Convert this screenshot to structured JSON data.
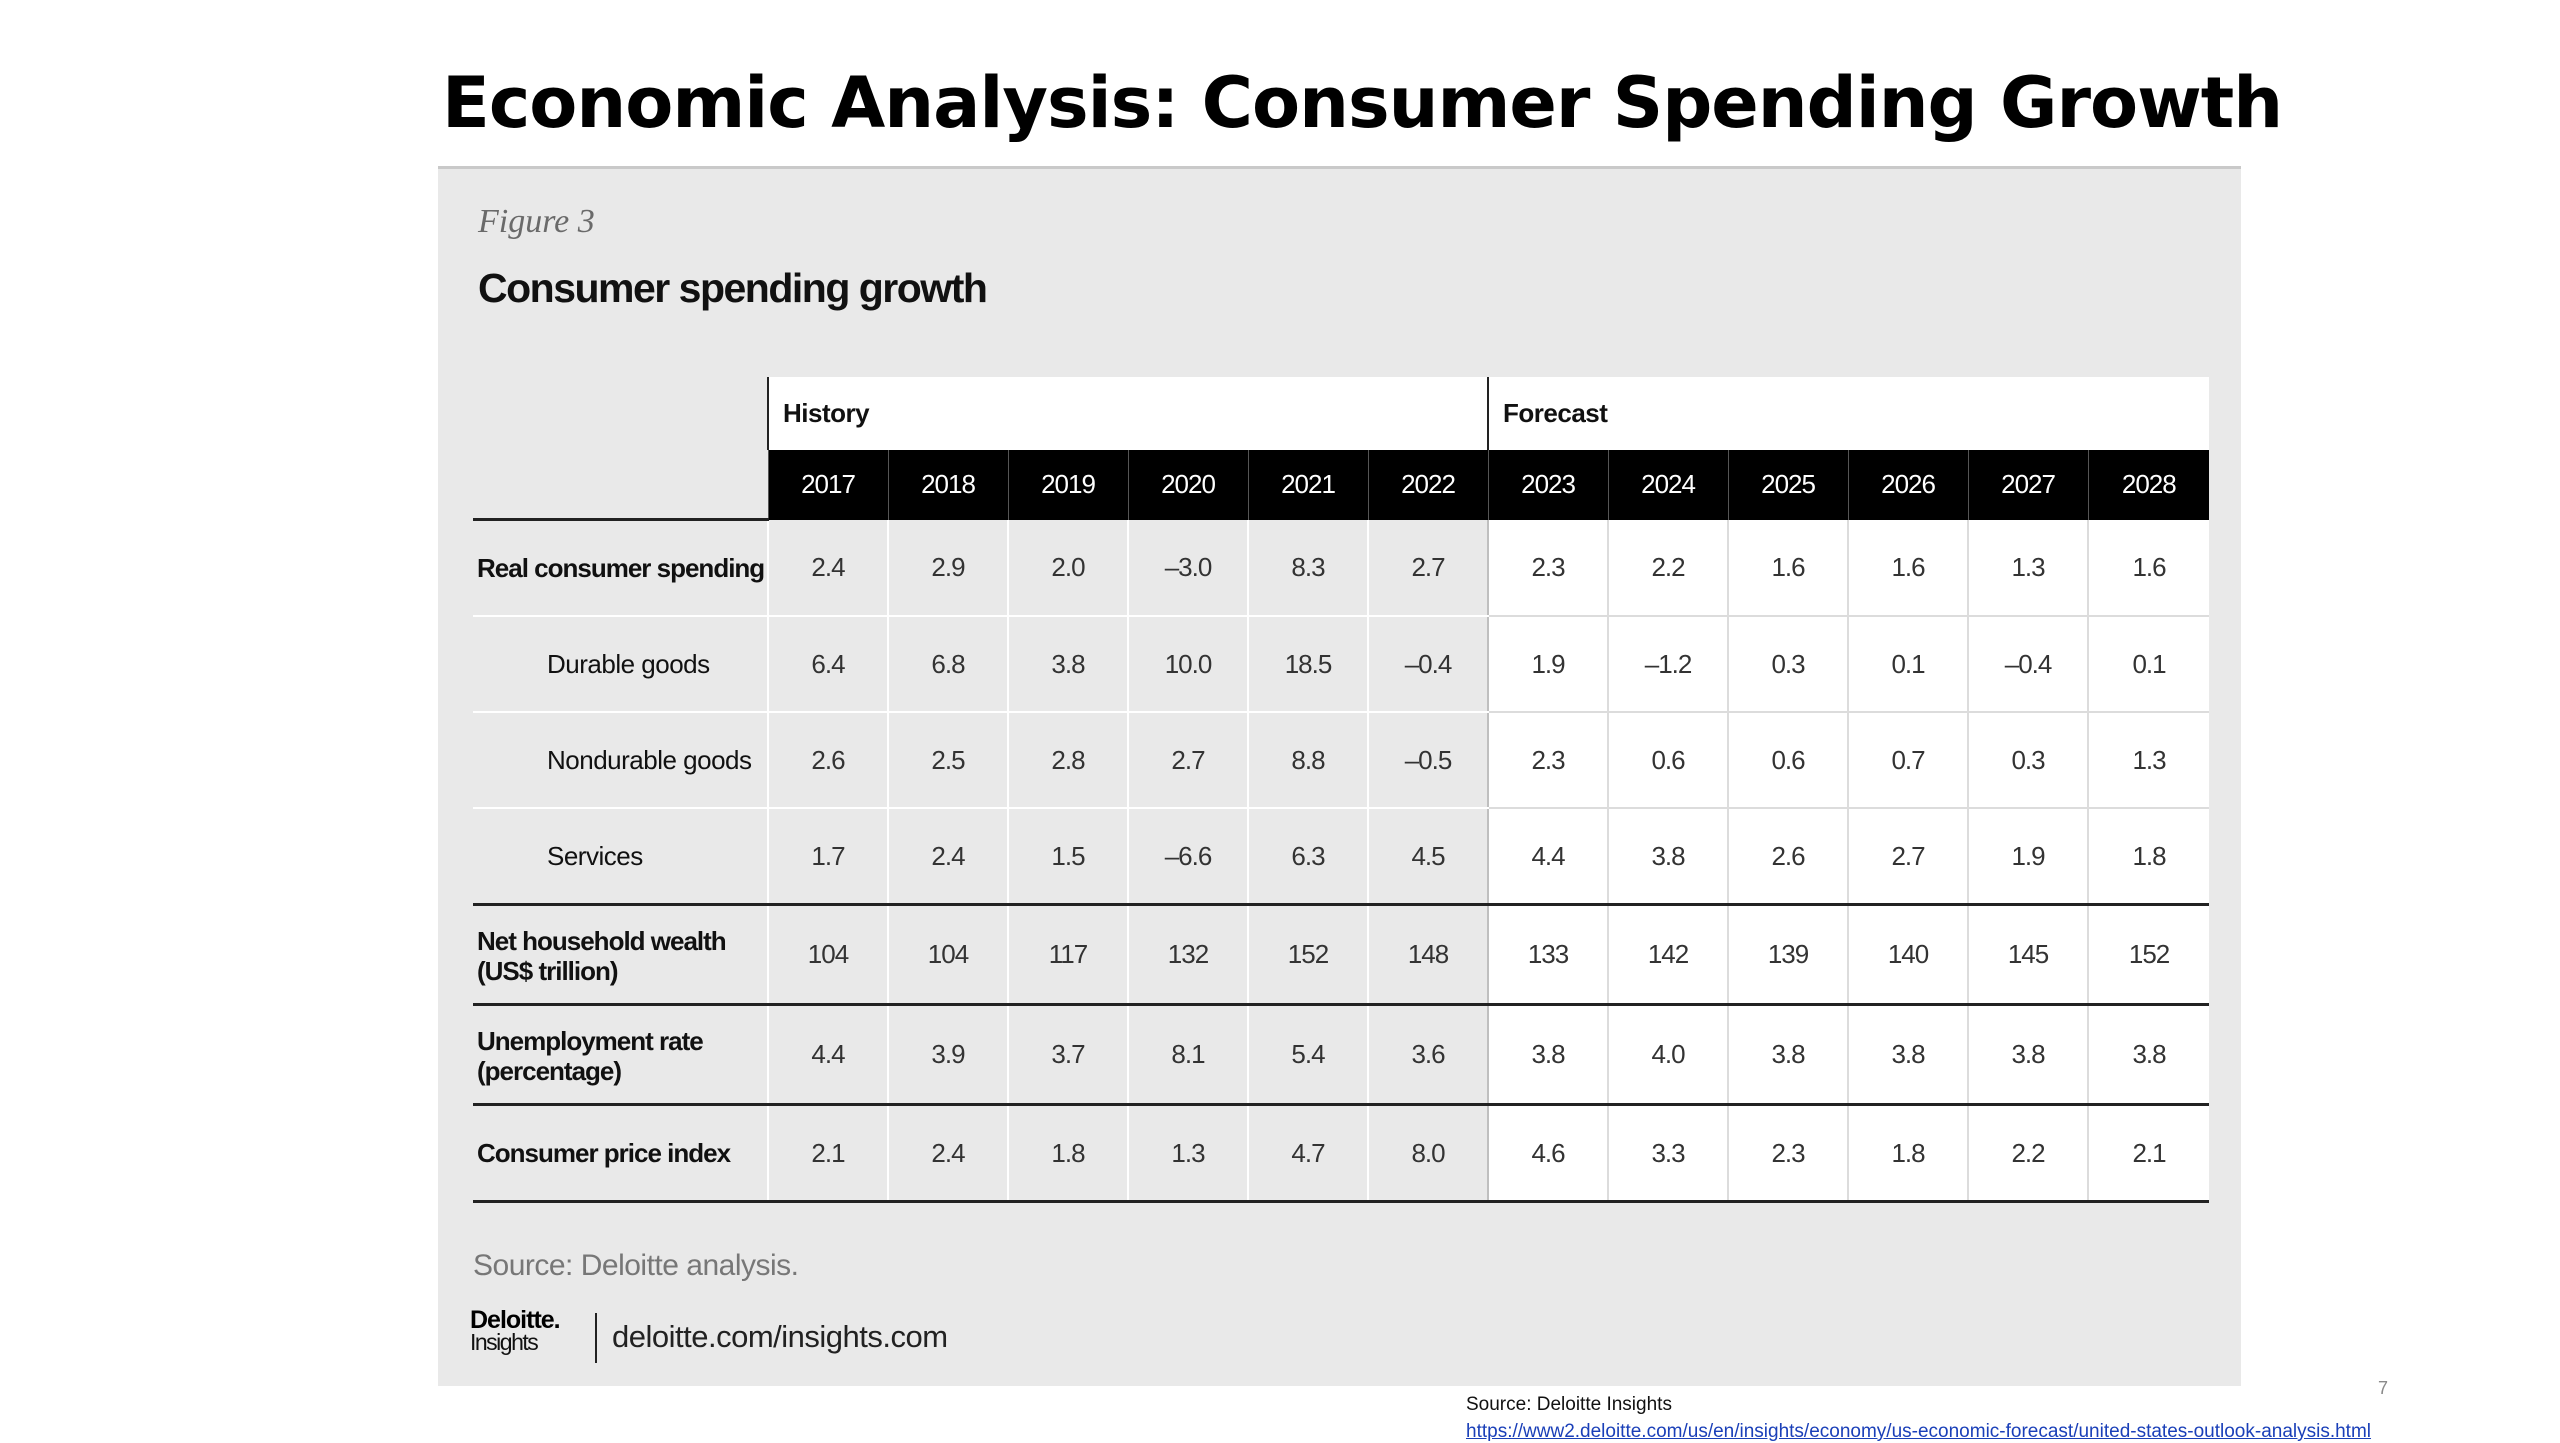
{
  "slide": {
    "title": "Economic Analysis: Consumer Spending Growth",
    "page_number": "7",
    "source_label": "Source: Deloitte Insights",
    "source_url": "https://www2.deloitte.com/us/en/insights/economy/us-economic-forecast/united-states-outlook-analysis.html"
  },
  "figure": {
    "label": "Figure 3",
    "heading": "Consumer spending growth",
    "source_note": "Source: Deloitte analysis.",
    "brand": {
      "logo_main": "Deloitte.",
      "logo_sub": "Insights",
      "url": "deloitte.com/insights.com"
    }
  },
  "table": {
    "groups": {
      "history": "History",
      "forecast": "Forecast"
    },
    "years": [
      "2017",
      "2018",
      "2019",
      "2020",
      "2021",
      "2022",
      "2023",
      "2024",
      "2025",
      "2026",
      "2027",
      "2028"
    ],
    "rows": [
      {
        "label": "Real consumer spending",
        "values": [
          "2.4",
          "2.9",
          "2.0",
          "–3.0",
          "8.3",
          "2.7",
          "2.3",
          "2.2",
          "1.6",
          "1.6",
          "1.3",
          "1.6"
        ]
      },
      {
        "label": "Durable goods",
        "values": [
          "6.4",
          "6.8",
          "3.8",
          "10.0",
          "18.5",
          "–0.4",
          "1.9",
          "–1.2",
          "0.3",
          "0.1",
          "–0.4",
          "0.1"
        ]
      },
      {
        "label": "Nondurable goods",
        "values": [
          "2.6",
          "2.5",
          "2.8",
          "2.7",
          "8.8",
          "–0.5",
          "2.3",
          "0.6",
          "0.6",
          "0.7",
          "0.3",
          "1.3"
        ]
      },
      {
        "label": "Services",
        "values": [
          "1.7",
          "2.4",
          "1.5",
          "–6.6",
          "6.3",
          "4.5",
          "4.4",
          "3.8",
          "2.6",
          "2.7",
          "1.9",
          "1.8"
        ]
      },
      {
        "label_line1": "Net household wealth",
        "label_line2": "(US$ trillion)",
        "values": [
          "104",
          "104",
          "117",
          "132",
          "152",
          "148",
          "133",
          "142",
          "139",
          "140",
          "145",
          "152"
        ]
      },
      {
        "label_line1": "Unemployment rate",
        "label_line2": "(percentage)",
        "values": [
          "4.4",
          "3.9",
          "3.7",
          "8.1",
          "5.4",
          "3.6",
          "3.8",
          "4.0",
          "3.8",
          "3.8",
          "3.8",
          "3.8"
        ]
      },
      {
        "label": "Consumer price index",
        "values": [
          "2.1",
          "2.4",
          "1.8",
          "1.3",
          "4.7",
          "8.0",
          "4.6",
          "3.3",
          "2.3",
          "1.8",
          "2.2",
          "2.1"
        ]
      }
    ]
  }
}
